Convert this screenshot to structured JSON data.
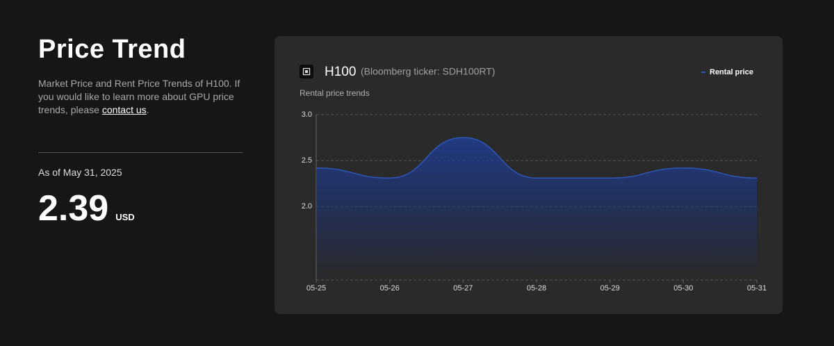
{
  "header": {
    "title": "Price Trend",
    "description": {
      "text": "Market Price and Rent Price Trends of H100. If you would like to learn more about GPU price trends, please ",
      "link": "contact us",
      "suffix": "."
    }
  },
  "status": {
    "as_of": "As of May 31, 2025",
    "price": 2.39,
    "unit": "USD"
  },
  "chart_data": {
    "type": "line",
    "title": "H100",
    "subtitle": "(Bloomberg ticker: SDH100RT)",
    "y_axis_label": "Rental price trends",
    "categories": [
      "05-25",
      "05-26",
      "05-27",
      "05-28",
      "05-29",
      "05-30",
      "05-31"
    ],
    "series": [
      {
        "name": "Rental price",
        "color": "#2d56b8",
        "values": [
          2.42,
          2.31,
          2.75,
          2.31,
          2.31,
          2.42,
          2.31
        ]
      }
    ],
    "ylim": [
      1.2,
      3.0
    ],
    "yticks": [
      {
        "value": 2,
        "label": "2.0"
      },
      {
        "value": 2.5,
        "label": "2.5"
      },
      {
        "value": 3,
        "label": "3.0"
      }
    ],
    "grid": true,
    "smooth": true,
    "area": true,
    "legend": "top-right"
  }
}
